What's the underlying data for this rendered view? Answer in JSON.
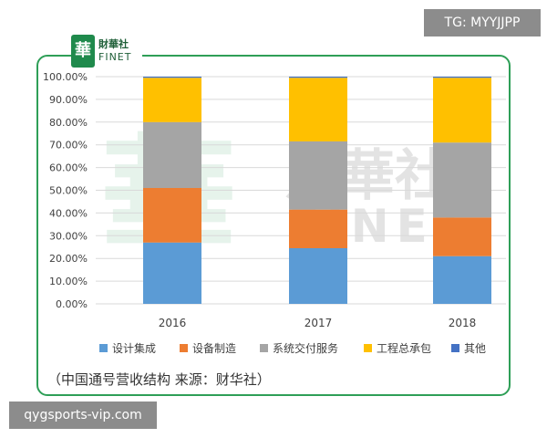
{
  "overlay": {
    "tag_text": "TG: MYYJJPP",
    "url_text": "qygsports-vip.com"
  },
  "watermark": {
    "logo_glyph": "華",
    "logo_cn": "財華社",
    "logo_en": "FINET",
    "big_cn": "財華社",
    "big_en": "FINET"
  },
  "chart_data": {
    "type": "bar",
    "stacked": true,
    "percent": true,
    "categories": [
      "2016",
      "2017",
      "2018"
    ],
    "ylim": [
      0,
      100
    ],
    "yticks": [
      0,
      10,
      20,
      30,
      40,
      50,
      60,
      70,
      80,
      90,
      100
    ],
    "ytick_labels": [
      "0.00%",
      "10.00%",
      "20.00%",
      "30.00%",
      "40.00%",
      "50.00%",
      "60.00%",
      "70.00%",
      "80.00%",
      "90.00%",
      "100.00%"
    ],
    "series": [
      {
        "name": "设计集成",
        "color": "#5b9bd5",
        "values": [
          27,
          24.5,
          21
        ]
      },
      {
        "name": "设备制造",
        "color": "#ed7d31",
        "values": [
          24,
          17,
          17
        ]
      },
      {
        "name": "系统交付服务",
        "color": "#a5a5a5",
        "values": [
          29,
          30,
          33
        ]
      },
      {
        "name": "工程总承包",
        "color": "#ffc000",
        "values": [
          19.5,
          28,
          28.5
        ]
      },
      {
        "name": "其他",
        "color": "#4472c4",
        "values": [
          0.5,
          0.5,
          0.5
        ]
      }
    ],
    "grid": true,
    "legend_position": "bottom"
  },
  "caption": "（中国通号营收结构   来源：财华社）"
}
